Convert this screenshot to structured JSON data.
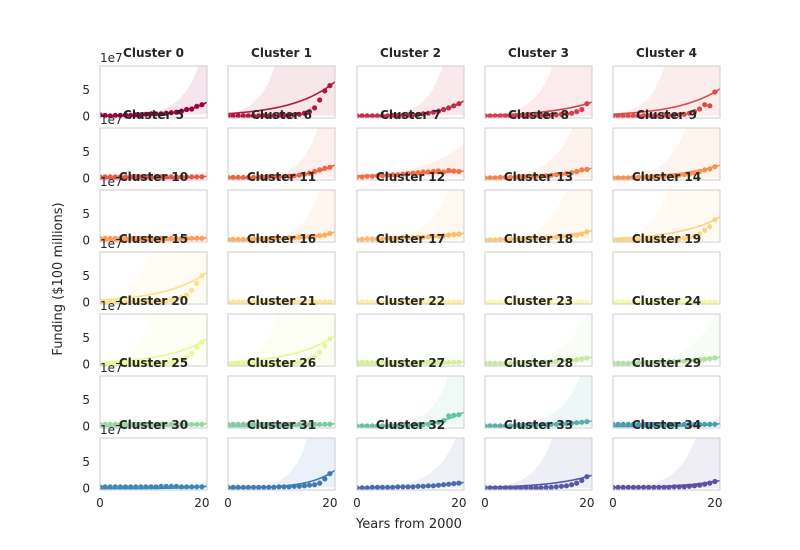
{
  "figure": {
    "ylabel": "Funding ($100 millions)",
    "xlabel": "Years from 2000",
    "y_offset_text": "1e7",
    "xticks": [
      "0",
      "20"
    ],
    "yticks": [
      "0",
      "5"
    ]
  },
  "chart_data": {
    "type": "scatter",
    "layout": "small-multiples 7 rows x 5 columns, shared axes",
    "xlim": [
      0,
      21
    ],
    "ylim": [
      -0.3,
      9.5
    ],
    "y_scale_multiplier": 10000000,
    "series_style": "dots with exponential fit line and shaded uncertainty band",
    "panels": [
      {
        "title": "Cluster 0",
        "color": "#9e0142",
        "k": 0.2,
        "band": 0.55,
        "values": [
          0.3,
          0.2,
          0.1,
          0.2,
          0.2,
          0.3,
          0.2,
          0.3,
          0.3,
          0.4,
          0.5,
          0.5,
          0.5,
          0.6,
          0.7,
          0.8,
          1.0,
          1.3,
          1.4,
          1.9,
          2.2
        ]
      },
      {
        "title": "Cluster 1",
        "color": "#b2173e",
        "k": 0.12,
        "band": 1.3,
        "values": [
          0.1,
          0.1,
          0.1,
          0.1,
          0.1,
          0.1,
          0.1,
          0.1,
          0.1,
          0.1,
          0.2,
          0.2,
          0.2,
          0.3,
          0.4,
          0.6,
          0.9,
          1.6,
          3.1,
          4.8,
          5.8
        ]
      },
      {
        "title": "Cluster 2",
        "color": "#c42c48",
        "k": 0.2,
        "band": 0.8,
        "values": [
          0.1,
          0.1,
          0.1,
          0.1,
          0.1,
          0.1,
          0.1,
          0.2,
          0.2,
          0.2,
          0.2,
          0.3,
          0.4,
          0.5,
          0.6,
          0.8,
          1.0,
          1.3,
          1.6,
          2.0,
          2.4
        ]
      },
      {
        "title": "Cluster 3",
        "color": "#d53e4f",
        "k": 0.12,
        "band": 1.1,
        "values": [
          0.1,
          0.1,
          0.1,
          0.1,
          0.1,
          0.1,
          0.1,
          0.1,
          0.1,
          0.1,
          0.1,
          0.2,
          0.2,
          0.2,
          0.3,
          0.4,
          0.5,
          0.6,
          0.9,
          1.3,
          2.4
        ]
      },
      {
        "title": "Cluster 4",
        "color": "#dd4a4c",
        "k": 0.12,
        "band": 1.25,
        "values": [
          0.1,
          0.1,
          0.1,
          0.1,
          0.1,
          0.1,
          0.1,
          0.1,
          0.1,
          0.1,
          0.2,
          0.2,
          0.2,
          0.3,
          0.4,
          0.6,
          0.9,
          1.4,
          2.2,
          2.0,
          4.6
        ]
      },
      {
        "title": "Cluster 5",
        "color": "#e55749",
        "k": 0.3,
        "band": 0.4,
        "values": [
          0.3,
          0.3,
          0.3,
          0.3,
          0.3,
          0.3,
          0.3,
          0.3,
          0.3,
          0.3,
          0.3,
          0.3,
          0.3,
          0.3,
          0.3,
          0.3,
          0.3,
          0.3,
          0.3,
          0.3,
          0.3
        ]
      },
      {
        "title": "Cluster 6",
        "color": "#ed6445",
        "k": 0.2,
        "band": 0.75,
        "values": [
          0.2,
          0.2,
          0.2,
          0.2,
          0.2,
          0.2,
          0.2,
          0.2,
          0.3,
          0.3,
          0.3,
          0.3,
          0.4,
          0.5,
          0.6,
          0.8,
          1.0,
          1.3,
          1.6,
          1.9,
          2.1
        ]
      },
      {
        "title": "Cluster 7",
        "color": "#f46d43",
        "k": 0.05,
        "band": 0.5,
        "values": [
          0.3,
          0.3,
          0.4,
          0.4,
          0.5,
          0.5,
          0.6,
          0.7,
          0.7,
          0.8,
          0.9,
          1.0,
          1.1,
          1.2,
          1.2,
          1.3,
          1.4,
          1.2,
          1.5,
          1.4,
          1.3
        ]
      },
      {
        "title": "Cluster 8",
        "color": "#f67f4b",
        "k": 0.12,
        "band": 0.8,
        "values": [
          0.1,
          0.1,
          0.1,
          0.2,
          0.2,
          0.2,
          0.2,
          0.3,
          0.3,
          0.3,
          0.4,
          0.4,
          0.5,
          0.6,
          0.7,
          0.8,
          0.9,
          1.1,
          1.3,
          1.6,
          1.7
        ]
      },
      {
        "title": "Cluster 9",
        "color": "#f89254",
        "k": 0.12,
        "band": 1.0,
        "values": [
          0.1,
          0.1,
          0.1,
          0.1,
          0.2,
          0.2,
          0.2,
          0.2,
          0.3,
          0.3,
          0.4,
          0.4,
          0.5,
          0.6,
          0.7,
          0.8,
          1.0,
          1.3,
          1.6,
          1.8,
          2.2
        ]
      },
      {
        "title": "Cluster 10",
        "color": "#fa9c58",
        "k": 0.3,
        "band": 0.4,
        "values": [
          0.4,
          0.4,
          0.4,
          0.4,
          0.4,
          0.4,
          0.4,
          0.4,
          0.4,
          0.4,
          0.4,
          0.4,
          0.4,
          0.4,
          0.4,
          0.4,
          0.4,
          0.4,
          0.4,
          0.4,
          0.4
        ]
      },
      {
        "title": "Cluster 11",
        "color": "#fdae61",
        "k": 0.2,
        "band": 0.9,
        "values": [
          0.2,
          0.2,
          0.2,
          0.2,
          0.3,
          0.3,
          0.3,
          0.3,
          0.3,
          0.4,
          0.4,
          0.4,
          0.5,
          0.5,
          0.6,
          0.6,
          0.7,
          0.8,
          0.9,
          1.0,
          1.3
        ]
      },
      {
        "title": "Cluster 12",
        "color": "#fdba6d",
        "k": 0.12,
        "band": 0.85,
        "values": [
          0.2,
          0.2,
          0.3,
          0.3,
          0.3,
          0.3,
          0.4,
          0.4,
          0.4,
          0.5,
          0.5,
          0.5,
          0.6,
          0.6,
          0.7,
          0.8,
          0.8,
          0.9,
          1.0,
          1.1,
          1.2
        ]
      },
      {
        "title": "Cluster 13",
        "color": "#fec574",
        "k": 0.12,
        "band": 0.95,
        "values": [
          0.1,
          0.1,
          0.1,
          0.2,
          0.2,
          0.2,
          0.2,
          0.3,
          0.3,
          0.3,
          0.4,
          0.4,
          0.5,
          0.5,
          0.6,
          0.7,
          0.8,
          0.9,
          1.0,
          1.2,
          1.6
        ]
      },
      {
        "title": "Cluster 14",
        "color": "#fed27f",
        "k": 0.12,
        "band": 1.25,
        "values": [
          0.1,
          0.1,
          0.1,
          0.1,
          0.1,
          0.1,
          0.1,
          0.1,
          0.1,
          0.1,
          0.2,
          0.2,
          0.2,
          0.3,
          0.4,
          0.6,
          0.8,
          1.2,
          1.9,
          2.6,
          3.9
        ]
      },
      {
        "title": "Cluster 15",
        "color": "#fee08b",
        "k": 0.12,
        "band": 1.25,
        "values": [
          0.1,
          0.1,
          0.1,
          0.1,
          0.1,
          0.1,
          0.1,
          0.1,
          0.1,
          0.1,
          0.1,
          0.2,
          0.2,
          0.3,
          0.4,
          0.6,
          0.9,
          1.4,
          2.3,
          3.6,
          5.0
        ]
      },
      {
        "title": "Cluster 16",
        "color": "#fee796",
        "k": 0.3,
        "band": 0.4,
        "values": [
          0.1,
          0.1,
          0.1,
          0.1,
          0.1,
          0.1,
          0.1,
          0.1,
          0.1,
          0.1,
          0.1,
          0.1,
          0.1,
          0.1,
          0.1,
          0.1,
          0.1,
          0.1,
          0.1,
          0.1,
          0.1
        ]
      },
      {
        "title": "Cluster 17",
        "color": "#fdf0a4",
        "k": 0.3,
        "band": 0.4,
        "values": [
          0.1,
          0.1,
          0.1,
          0.1,
          0.1,
          0.1,
          0.1,
          0.1,
          0.1,
          0.1,
          0.1,
          0.1,
          0.1,
          0.1,
          0.1,
          0.1,
          0.1,
          0.1,
          0.1,
          0.1,
          0.1
        ]
      },
      {
        "title": "Cluster 18",
        "color": "#fcf9b3",
        "k": 0.3,
        "band": 0.4,
        "values": [
          0.1,
          0.1,
          0.1,
          0.1,
          0.1,
          0.1,
          0.1,
          0.1,
          0.1,
          0.1,
          0.1,
          0.1,
          0.1,
          0.1,
          0.1,
          0.1,
          0.1,
          0.1,
          0.1,
          0.1,
          0.1
        ]
      },
      {
        "title": "Cluster 19",
        "color": "#f3f9a6",
        "k": 0.3,
        "band": 0.4,
        "values": [
          0.1,
          0.1,
          0.1,
          0.1,
          0.1,
          0.1,
          0.1,
          0.1,
          0.1,
          0.1,
          0.1,
          0.1,
          0.1,
          0.1,
          0.1,
          0.1,
          0.1,
          0.1,
          0.1,
          0.1,
          0.1
        ]
      },
      {
        "title": "Cluster 20",
        "color": "#ecf797",
        "k": 0.12,
        "band": 1.25,
        "values": [
          0.1,
          0.1,
          0.1,
          0.1,
          0.1,
          0.1,
          0.1,
          0.1,
          0.1,
          0.1,
          0.1,
          0.2,
          0.2,
          0.3,
          0.4,
          0.6,
          0.9,
          1.4,
          2.1,
          3.2,
          4.2
        ]
      },
      {
        "title": "Cluster 21",
        "color": "#e6f598",
        "k": 0.12,
        "band": 1.25,
        "values": [
          0.1,
          0.1,
          0.1,
          0.1,
          0.1,
          0.1,
          0.1,
          0.1,
          0.1,
          0.1,
          0.1,
          0.2,
          0.2,
          0.3,
          0.4,
          0.6,
          0.9,
          1.4,
          2.3,
          3.5,
          4.8
        ]
      },
      {
        "title": "Cluster 22",
        "color": "#d7ef9b",
        "k": 0.3,
        "band": 0.4,
        "values": [
          0.4,
          0.4,
          0.4,
          0.4,
          0.4,
          0.4,
          0.4,
          0.4,
          0.4,
          0.4,
          0.4,
          0.4,
          0.4,
          0.4,
          0.4,
          0.4,
          0.4,
          0.4,
          0.4,
          0.4,
          0.4
        ]
      },
      {
        "title": "Cluster 23",
        "color": "#c7e89e",
        "k": 0.12,
        "band": 0.7,
        "values": [
          0.2,
          0.2,
          0.2,
          0.2,
          0.2,
          0.2,
          0.3,
          0.3,
          0.3,
          0.3,
          0.4,
          0.4,
          0.4,
          0.5,
          0.5,
          0.6,
          0.7,
          0.8,
          0.9,
          1.0,
          1.2
        ]
      },
      {
        "title": "Cluster 24",
        "color": "#b3e0a2",
        "k": 0.12,
        "band": 0.7,
        "values": [
          0.2,
          0.2,
          0.2,
          0.2,
          0.3,
          0.3,
          0.3,
          0.3,
          0.4,
          0.4,
          0.4,
          0.5,
          0.5,
          0.6,
          0.6,
          0.7,
          0.8,
          0.9,
          1.0,
          1.1,
          1.2
        ]
      },
      {
        "title": "Cluster 25",
        "color": "#99d5a4",
        "k": 0.3,
        "band": 0.4,
        "values": [
          0.4,
          0.4,
          0.4,
          0.4,
          0.4,
          0.4,
          0.4,
          0.4,
          0.4,
          0.4,
          0.4,
          0.4,
          0.4,
          0.4,
          0.4,
          0.4,
          0.4,
          0.4,
          0.4,
          0.4,
          0.4
        ]
      },
      {
        "title": "Cluster 26",
        "color": "#7fcaa5",
        "k": 0.3,
        "band": 0.4,
        "values": [
          0.4,
          0.4,
          0.4,
          0.4,
          0.4,
          0.4,
          0.4,
          0.4,
          0.4,
          0.4,
          0.4,
          0.4,
          0.4,
          0.4,
          0.4,
          0.4,
          0.4,
          0.4,
          0.4,
          0.4,
          0.4
        ]
      },
      {
        "title": "Cluster 27",
        "color": "#66c2a5",
        "k": 0.2,
        "band": 0.7,
        "values": [
          0.1,
          0.1,
          0.1,
          0.1,
          0.1,
          0.1,
          0.1,
          0.1,
          0.1,
          0.2,
          0.2,
          0.2,
          0.3,
          0.3,
          0.4,
          0.6,
          0.8,
          1.1,
          2.0,
          2.1,
          2.2
        ]
      },
      {
        "title": "Cluster 28",
        "color": "#57afac",
        "k": 0.12,
        "band": 0.9,
        "values": [
          0.1,
          0.1,
          0.1,
          0.1,
          0.1,
          0.1,
          0.2,
          0.2,
          0.2,
          0.2,
          0.3,
          0.3,
          0.3,
          0.4,
          0.4,
          0.5,
          0.5,
          0.6,
          0.7,
          0.8,
          0.9
        ]
      },
      {
        "title": "Cluster 29",
        "color": "#489cb2",
        "k": 0.3,
        "band": 0.4,
        "values": [
          0.4,
          0.4,
          0.4,
          0.4,
          0.4,
          0.4,
          0.4,
          0.4,
          0.4,
          0.4,
          0.4,
          0.4,
          0.4,
          0.4,
          0.4,
          0.4,
          0.4,
          0.4,
          0.4,
          0.4,
          0.4
        ]
      },
      {
        "title": "Cluster 30",
        "color": "#3a89b8",
        "k": 0.3,
        "band": 0.4,
        "values": [
          0.3,
          0.3,
          0.3,
          0.3,
          0.3,
          0.3,
          0.3,
          0.3,
          0.3,
          0.3,
          0.3,
          0.3,
          0.4,
          0.4,
          0.4,
          0.4,
          0.3,
          0.3,
          0.3,
          0.3,
          0.3
        ]
      },
      {
        "title": "Cluster 31",
        "color": "#3e7ab6",
        "k": 0.2,
        "band": 0.9,
        "values": [
          0.2,
          0.2,
          0.2,
          0.2,
          0.2,
          0.2,
          0.2,
          0.2,
          0.2,
          0.2,
          0.3,
          0.3,
          0.3,
          0.4,
          0.4,
          0.5,
          0.6,
          0.7,
          1.0,
          1.8,
          2.8
        ]
      },
      {
        "title": "Cluster 32",
        "color": "#4a6bae",
        "k": 0.12,
        "band": 0.8,
        "values": [
          0.1,
          0.1,
          0.1,
          0.2,
          0.2,
          0.2,
          0.2,
          0.2,
          0.3,
          0.3,
          0.3,
          0.3,
          0.4,
          0.4,
          0.5,
          0.5,
          0.6,
          0.7,
          0.8,
          0.9,
          1.0
        ]
      },
      {
        "title": "Cluster 33",
        "color": "#5759a6",
        "k": 0.12,
        "band": 1.15,
        "values": [
          0.1,
          0.1,
          0.1,
          0.1,
          0.1,
          0.1,
          0.1,
          0.1,
          0.1,
          0.1,
          0.1,
          0.1,
          0.2,
          0.2,
          0.3,
          0.4,
          0.5,
          0.7,
          1.0,
          1.5,
          2.2
        ]
      },
      {
        "title": "Cluster 34",
        "color": "#5e4fa2",
        "k": 0.12,
        "band": 1.0,
        "values": [
          0.2,
          0.2,
          0.2,
          0.2,
          0.2,
          0.2,
          0.2,
          0.2,
          0.2,
          0.2,
          0.2,
          0.2,
          0.3,
          0.3,
          0.3,
          0.4,
          0.5,
          0.6,
          0.8,
          1.0,
          1.3
        ]
      }
    ]
  }
}
